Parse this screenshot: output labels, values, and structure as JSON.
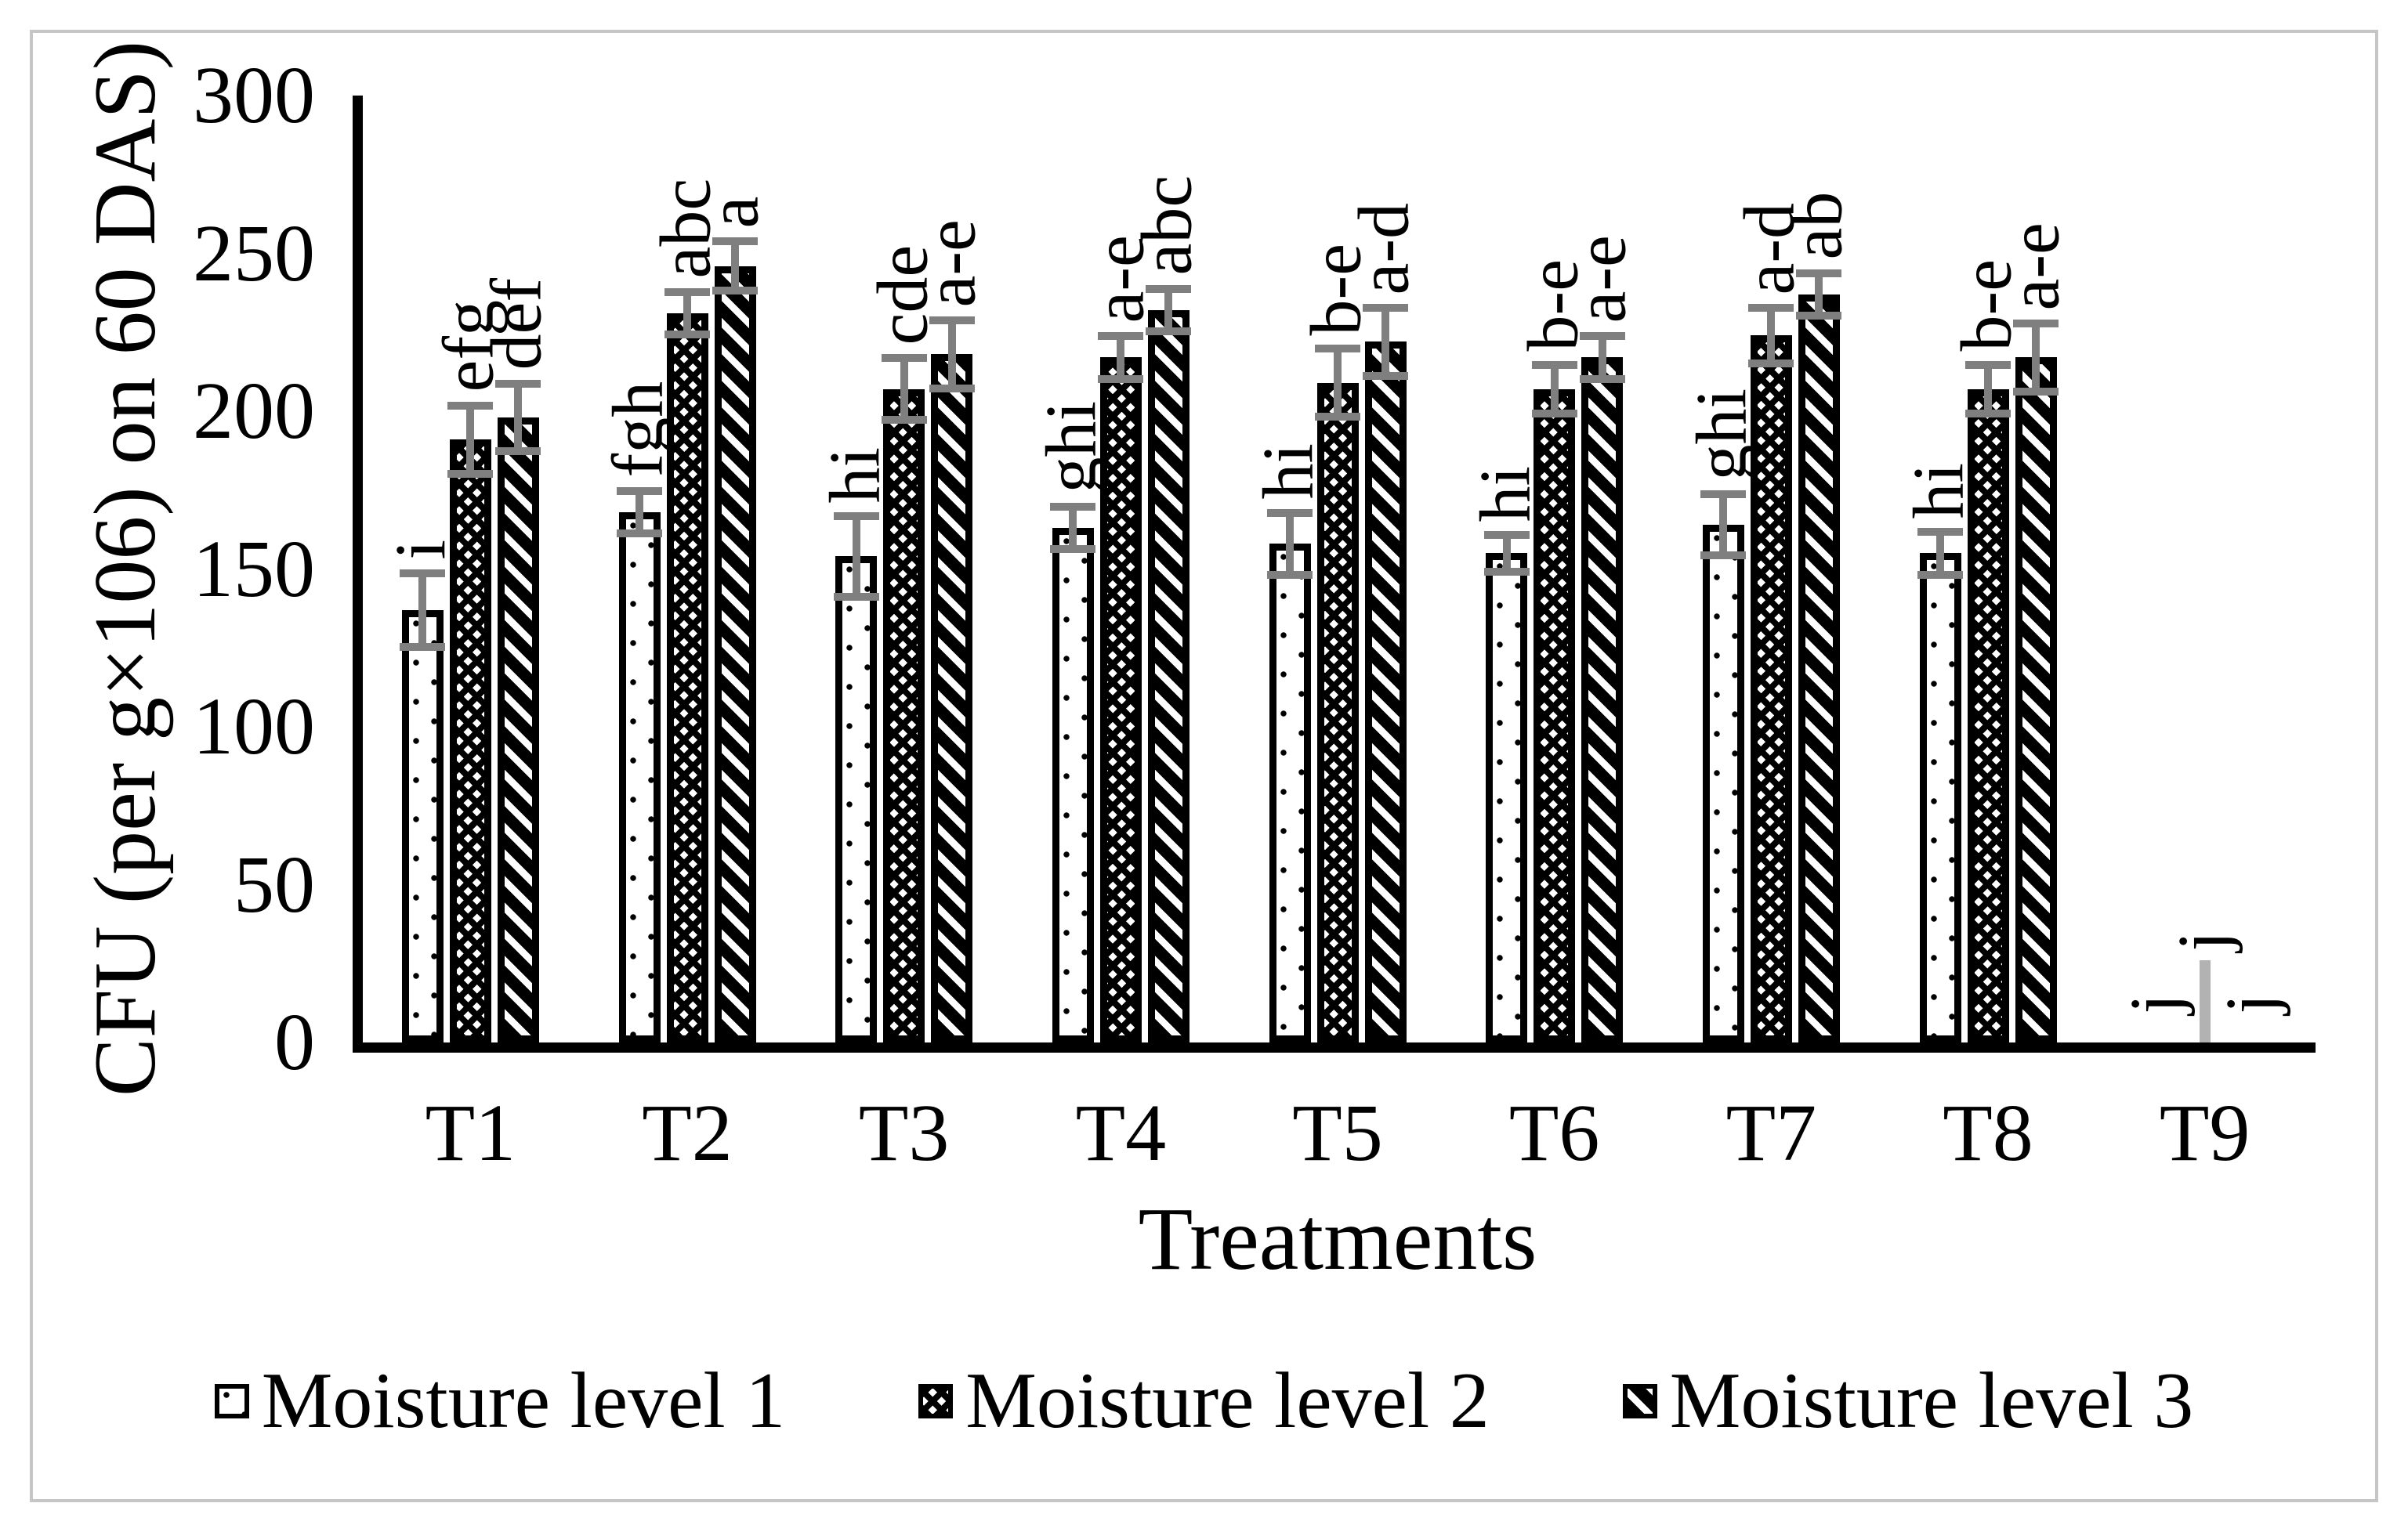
{
  "figure": {
    "background": "#ffffff",
    "border_color": "#c6c6c6",
    "axis_color": "#000000",
    "error_bar_color": "#7f7f7f",
    "zero_error_bar_color": "#b2b2b2"
  },
  "chart_data": {
    "type": "bar",
    "title": "",
    "xlabel": "Treatments",
    "ylabel": "CFU (per g×106)  on 60 DAS)",
    "ylim": [
      0,
      300
    ],
    "ytick_step": 50,
    "yticks": [
      0,
      50,
      100,
      150,
      200,
      250,
      300
    ],
    "grid": false,
    "legend_position": "bottom",
    "categories": [
      "T1",
      "T2",
      "T3",
      "T4",
      "T5",
      "T6",
      "T7",
      "T8",
      "T9"
    ],
    "series": [
      {
        "name": "Moisture level 1",
        "pattern": "dots",
        "values": [
          137,
          168,
          154,
          163,
          158,
          155,
          164,
          155,
          0
        ],
        "errors": [
          13,
          8,
          14,
          8,
          11,
          7,
          11,
          8,
          0
        ],
        "point_labels": [
          "i",
          "fgh",
          "hi",
          "ghi",
          "hi",
          "hi",
          "ghi",
          "hi",
          "j"
        ]
      },
      {
        "name": "Moisture level 2",
        "pattern": "checker",
        "values": [
          191,
          231,
          207,
          217,
          209,
          207,
          224,
          207,
          0
        ],
        "errors": [
          12,
          8,
          11,
          8,
          12,
          9,
          10,
          9,
          26
        ],
        "point_labels": [
          "efg",
          "abc",
          "cde",
          "a-e",
          "b-e",
          "b-e",
          "a-d",
          "b-e",
          "j"
        ]
      },
      {
        "name": "Moisture level 3",
        "pattern": "diagonal-stripes",
        "values": [
          198,
          246,
          218,
          232,
          222,
          217,
          237,
          217,
          0
        ],
        "errors": [
          12,
          9,
          12,
          8,
          12,
          8,
          8,
          12,
          0
        ],
        "point_labels": [
          "def",
          "a",
          "a-e",
          "abc",
          "a-d",
          "a-e",
          "ab",
          "a-e",
          "j"
        ]
      }
    ]
  }
}
